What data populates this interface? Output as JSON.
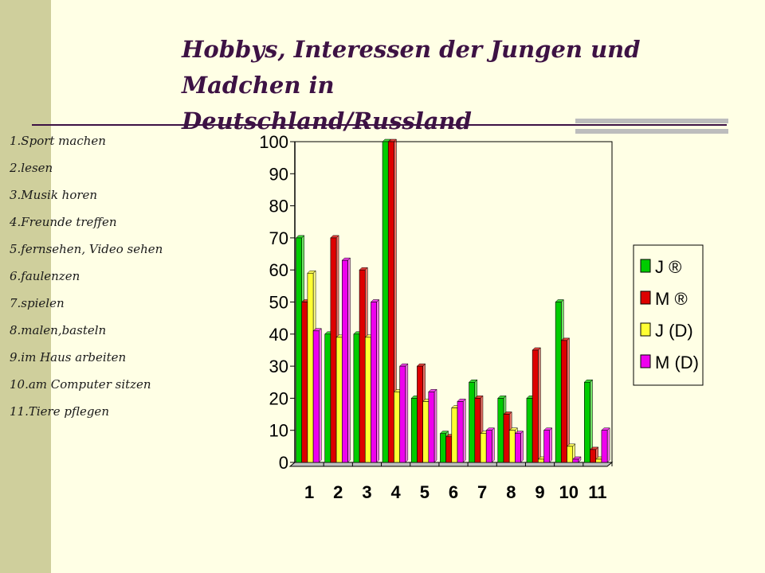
{
  "slide": {
    "title_line1": "Hobbys, Interessen der Jungen und Madchen in",
    "title_line2": "Deutschland/Russland"
  },
  "hobbies": [
    "1.Sport machen",
    "2.lesen",
    "3.Musik horen",
    "4.Freunde treffen",
    "5.fernsehen, Video sehen",
    "6.faulenzen",
    "7.spielen",
    "8.malen,basteln",
    "9.im Haus arbeiten",
    "10.am Computer sitzen",
    "11.Tiere pflegen"
  ],
  "colors": {
    "background": "#FFFFE5",
    "side_strip": "#CFCF9C",
    "title": "#3D1244"
  },
  "chart_data": {
    "type": "bar",
    "categories": [
      "1",
      "2",
      "3",
      "4",
      "5",
      "6",
      "7",
      "8",
      "9",
      "10",
      "11"
    ],
    "ylim": [
      0,
      100
    ],
    "yticks": [
      0,
      10,
      20,
      30,
      40,
      50,
      60,
      70,
      80,
      90,
      100
    ],
    "legend_position": "right",
    "grid": false,
    "series": [
      {
        "name": "J ®",
        "color": "#00CC00",
        "values": [
          70,
          40,
          40,
          100,
          20,
          9,
          25,
          20,
          20,
          50,
          25
        ]
      },
      {
        "name": "M ®",
        "color": "#DD0000",
        "values": [
          50,
          70,
          60,
          100,
          30,
          8,
          20,
          15,
          35,
          38,
          4
        ]
      },
      {
        "name": "J (D)",
        "color": "#FFFF33",
        "values": [
          59,
          39,
          39,
          22,
          19,
          17,
          9,
          10,
          1,
          5,
          1
        ]
      },
      {
        "name": "M (D)",
        "color": "#EE00EE",
        "values": [
          41,
          63,
          50,
          30,
          22,
          19,
          10,
          9,
          10,
          1,
          10
        ]
      }
    ]
  }
}
